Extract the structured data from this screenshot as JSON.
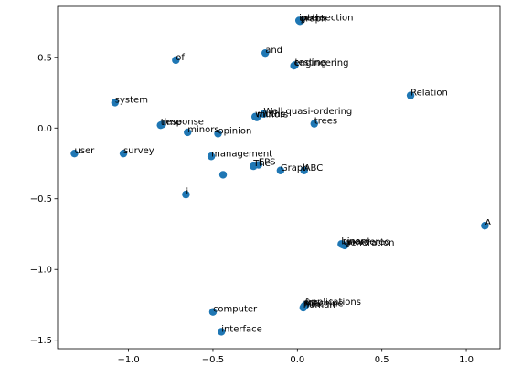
{
  "chart_data": {
    "type": "scatter",
    "title": "",
    "xlabel": "",
    "ylabel": "",
    "xlim": [
      -1.42,
      1.2
    ],
    "ylim": [
      -1.56,
      0.86
    ],
    "x_ticks": [
      -1.0,
      -0.5,
      0.0,
      0.5,
      1.0
    ],
    "x_tick_labels": [
      "−1.0",
      "−0.5",
      "0.0",
      "0.5",
      "1.0"
    ],
    "y_ticks": [
      -1.5,
      -1.0,
      -0.5,
      0.0,
      0.5
    ],
    "y_tick_labels": [
      "−1.5",
      "−1.0",
      "−0.5",
      "0.0",
      "0.5"
    ],
    "grid": false,
    "marker_color": "#1f77b4",
    "points": [
      {
        "label": "intersection",
        "x": 0.01,
        "y": 0.76
      },
      {
        "label": "paths",
        "x": 0.02,
        "y": 0.76
      },
      {
        "label": "graph",
        "x": 0.015,
        "y": 0.755
      },
      {
        "label": "and",
        "x": -0.19,
        "y": 0.53
      },
      {
        "label": "of",
        "x": -0.72,
        "y": 0.48
      },
      {
        "label": "engineering",
        "x": -0.02,
        "y": 0.44
      },
      {
        "label": "testing",
        "x": -0.015,
        "y": 0.445
      },
      {
        "label": "system",
        "x": -1.08,
        "y": 0.18
      },
      {
        "label": "Relation",
        "x": 0.67,
        "y": 0.23
      },
      {
        "label": "Well quasi-ordering",
        "x": -0.2,
        "y": 0.1
      },
      {
        "label": "widths",
        "x": -0.25,
        "y": 0.08
      },
      {
        "label": "minors",
        "x": -0.24,
        "y": 0.075
      },
      {
        "label": "trees",
        "x": 0.1,
        "y": 0.03
      },
      {
        "label": "time",
        "x": -0.81,
        "y": 0.02
      },
      {
        "label": "response",
        "x": -0.8,
        "y": 0.025
      },
      {
        "label": "minors",
        "x": -0.65,
        "y": -0.03
      },
      {
        "label": "opinion",
        "x": -0.47,
        "y": -0.04
      },
      {
        "label": "user",
        "x": -1.32,
        "y": -0.18
      },
      {
        "label": "survey",
        "x": -1.03,
        "y": -0.18
      },
      {
        "label": "management",
        "x": -0.51,
        "y": -0.2
      },
      {
        "label": "EPS",
        "x": -0.23,
        "y": -0.26
      },
      {
        "label": "The",
        "x": -0.26,
        "y": -0.27
      },
      {
        "label": "Graph",
        "x": -0.1,
        "y": -0.3
      },
      {
        "label": "ABC",
        "x": 0.04,
        "y": -0.3
      },
      {
        "label": "",
        "x": -0.44,
        "y": -0.33
      },
      {
        "label": "i",
        "x": -0.66,
        "y": -0.47
      },
      {
        "label": "A",
        "x": 1.11,
        "y": -0.69
      },
      {
        "label": "binary",
        "x": 0.26,
        "y": -0.82
      },
      {
        "label": "unordered",
        "x": 0.27,
        "y": -0.825
      },
      {
        "label": "generation",
        "x": 0.28,
        "y": -0.83
      },
      {
        "label": "applications",
        "x": 0.05,
        "y": -1.25
      },
      {
        "label": "for",
        "x": 0.045,
        "y": -1.255
      },
      {
        "label": "machine",
        "x": 0.04,
        "y": -1.26
      },
      {
        "label": "human",
        "x": 0.035,
        "y": -1.27
      },
      {
        "label": "computer",
        "x": -0.5,
        "y": -1.3
      },
      {
        "label": "interface",
        "x": -0.45,
        "y": -1.44
      }
    ]
  }
}
